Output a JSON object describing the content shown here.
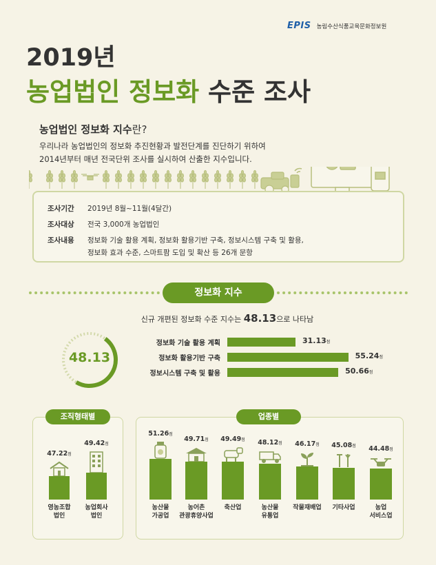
{
  "logo": {
    "mark": "EPIS",
    "org_name": "농림수산식품교육문화정보원"
  },
  "title": {
    "year": "2019년",
    "main_green": "농업법인 정보화",
    "main_rest": " 수준 조사"
  },
  "definition": {
    "heading_bold": "농업법인 정보화 지수",
    "heading_suffix": "란?",
    "line1": "우리나라 농업법인의 정보화 추진현황과 발전단계를 진단하기 위하여",
    "line2": "2014년부터 매년 전국단위 조사를 실시하여 산출한 지수입니다."
  },
  "survey": {
    "period_label": "조사기간",
    "period_value": "2019년 8월~11월(4달간)",
    "target_label": "조사대상",
    "target_value": "전국 3,000개 농업법인",
    "content_label": "조사내용",
    "content_line1": "정보화 기술 활용 계획, 정보화 활용기반 구축, 정보시스템 구축 및 활용,",
    "content_line2": "정보화 효과 수준, 스마트팜 도입 및 확산 등 26개 문항"
  },
  "index": {
    "pill_label": "정보화 지수",
    "subtitle_pre": "신규 개편된 정보화 수준 지수는 ",
    "subtitle_value": "48.13",
    "subtitle_post": "으로 나타남",
    "gauge_value": "48.13",
    "gauge_fraction": 0.4813,
    "bars": [
      {
        "label": "정보화 기술 활용 계획",
        "value": 31.13,
        "display": "31.13",
        "unit": "점"
      },
      {
        "label": "정보화 활용기반 구축",
        "value": 55.24,
        "display": "55.24",
        "unit": "점"
      },
      {
        "label": "정보시스템 구축 및 활용",
        "value": 50.66,
        "display": "50.66",
        "unit": "점"
      }
    ]
  },
  "org_type": {
    "pill_label": "조직형태별",
    "items": [
      {
        "value": 47.22,
        "display": "47.22",
        "unit": "점",
        "label1": "영농조합",
        "label2": "법인",
        "icon": "house-icon"
      },
      {
        "value": 49.42,
        "display": "49.42",
        "unit": "점",
        "label1": "농업회사",
        "label2": "법인",
        "icon": "building-icon"
      }
    ]
  },
  "industry": {
    "pill_label": "업종별",
    "items": [
      {
        "value": 51.26,
        "display": "51.26",
        "unit": "점",
        "label1": "농산물",
        "label2": "가공업",
        "icon": "jar-icon"
      },
      {
        "value": 49.71,
        "display": "49.71",
        "unit": "점",
        "label1": "농어촌",
        "label2": "관광휴양사업",
        "icon": "cottage-icon"
      },
      {
        "value": 49.49,
        "display": "49.49",
        "unit": "점",
        "label1": "축산업",
        "label2": "",
        "icon": "cow-icon"
      },
      {
        "value": 48.12,
        "display": "48.12",
        "unit": "점",
        "label1": "농산물",
        "label2": "유통업",
        "icon": "truck-icon"
      },
      {
        "value": 46.17,
        "display": "46.17",
        "unit": "점",
        "label1": "작물재배업",
        "label2": "",
        "icon": "sprout-icon"
      },
      {
        "value": 45.08,
        "display": "45.08",
        "unit": "점",
        "label1": "기타사업",
        "label2": "",
        "icon": "tools-icon"
      },
      {
        "value": 44.48,
        "display": "44.48",
        "unit": "점",
        "label1": "농업",
        "label2": "서비스업",
        "icon": "drone-icon"
      }
    ]
  },
  "colors": {
    "accent": "#6a9a25",
    "background": "#f6f3e6",
    "panel_border": "#cfd7a3",
    "text": "#333333"
  }
}
